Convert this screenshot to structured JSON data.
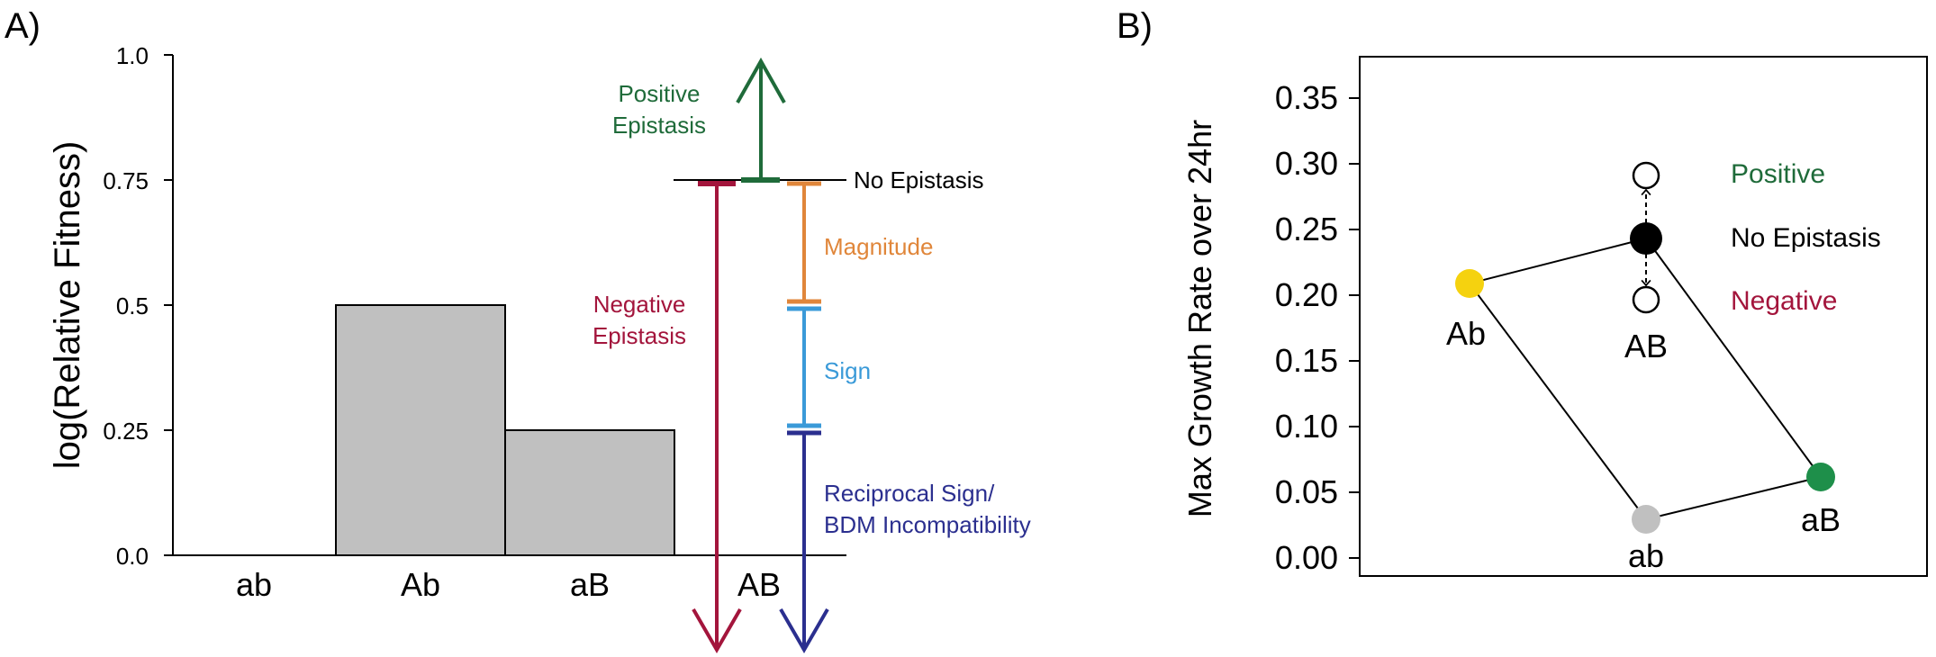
{
  "colors": {
    "bar_fill": "#c0c0c0",
    "positive": "#1f6b3a",
    "negative": "#a3153c",
    "magnitude": "#e0863a",
    "sign": "#3a9ad8",
    "reciprocal": "#2b2f8f",
    "point_ab": "#c0c0c0",
    "point_Ab": "#f5d20f",
    "point_aB": "#1e8f4a",
    "point_AB": "#000000",
    "text": "#000000"
  },
  "chart_data": [
    {
      "panel_label": "A)",
      "type": "bar",
      "xlabel": "",
      "ylabel": "log(Relative Fitness)",
      "ylim": [
        0,
        1
      ],
      "ytick_labels": [
        "0.0",
        "0.25",
        "0.5",
        "0.75",
        "1.0"
      ],
      "categories": [
        "ab",
        "Ab",
        "aB",
        "AB"
      ],
      "values": [
        0,
        0.5,
        0.25,
        null
      ],
      "no_epistasis_value": 0.75,
      "no_epistasis_label": "No Epistasis",
      "positive": {
        "label_line1": "Positive",
        "label_line2": "Epistasis",
        "from": 0.75,
        "direction": "up",
        "icon": "arrow-up-icon"
      },
      "negative": {
        "label_line1": "Negative",
        "label_line2": "Epistasis",
        "from": 0.75,
        "direction": "down",
        "icon": "arrow-down-icon"
      },
      "ranges": [
        {
          "name": "magnitude",
          "label_line1": "Magnitude",
          "label_line2": "",
          "from": 0.75,
          "to": 0.5
        },
        {
          "name": "sign",
          "label_line1": "Sign",
          "label_line2": "",
          "from": 0.5,
          "to": 0.25
        },
        {
          "name": "reciprocal",
          "label_line1": "Reciprocal Sign/",
          "label_line2": "BDM Incompatibility",
          "from": 0.25,
          "to": null
        }
      ]
    },
    {
      "panel_label": "B)",
      "type": "scatter",
      "xlabel": "",
      "ylabel": "Max Growth Rate over 24hr",
      "ylim": [
        -0.015,
        0.38
      ],
      "ytick_labels": [
        "0.00",
        "0.05",
        "0.10",
        "0.15",
        "0.20",
        "0.25",
        "0.30",
        "0.35"
      ],
      "grid": false,
      "points": [
        {
          "label": "ab",
          "x": 0,
          "y": 0.03
        },
        {
          "label": "Ab",
          "x": -1,
          "y": 0.208
        },
        {
          "label": "aB",
          "x": 1,
          "y": 0.062
        },
        {
          "label": "AB",
          "x": 0,
          "y": 0.24
        }
      ],
      "alternatives": [
        {
          "y": 0.288
        },
        {
          "y": 0.195
        }
      ],
      "legend": [
        "Positive",
        "No Epistasis",
        "Negative"
      ],
      "legend_placement": "top-right"
    }
  ]
}
